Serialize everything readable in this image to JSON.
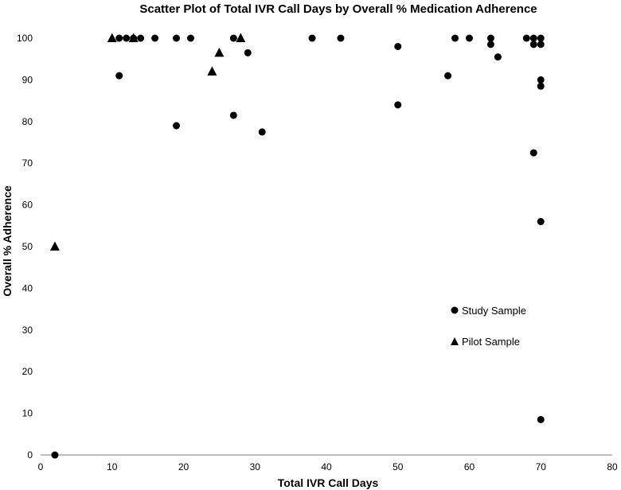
{
  "chart_data": {
    "type": "scatter",
    "title": "Scatter Plot of Total IVR Call Days by Overall % Medication Adherence",
    "xlabel": "Total IVR Call Days",
    "ylabel": "Overall % Adherence",
    "xlim": [
      0,
      80
    ],
    "ylim": [
      0,
      100
    ],
    "xticks": [
      "0",
      "10",
      "20",
      "30",
      "40",
      "50",
      "60",
      "70",
      "80"
    ],
    "yticks": [
      "0",
      "10",
      "20",
      "30",
      "40",
      "50",
      "60",
      "70",
      "80",
      "90",
      "100"
    ],
    "grid": false,
    "legend_position": "lower-right",
    "series": [
      {
        "name": "Study Sample",
        "marker": "circle",
        "color": "#000000",
        "points": [
          [
            2,
            0
          ],
          [
            11,
            100
          ],
          [
            11,
            91
          ],
          [
            12,
            100
          ],
          [
            13,
            100
          ],
          [
            14,
            100
          ],
          [
            16,
            100
          ],
          [
            19,
            100
          ],
          [
            19,
            79
          ],
          [
            21,
            100
          ],
          [
            27,
            100
          ],
          [
            27,
            81.5
          ],
          [
            29,
            96.5
          ],
          [
            31,
            77.5
          ],
          [
            38,
            100
          ],
          [
            42,
            100
          ],
          [
            50,
            98
          ],
          [
            50,
            84
          ],
          [
            57,
            91
          ],
          [
            58,
            100
          ],
          [
            60,
            100
          ],
          [
            63,
            100
          ],
          [
            63,
            98.5
          ],
          [
            64,
            95.5
          ],
          [
            68,
            100
          ],
          [
            69,
            100
          ],
          [
            69,
            98.5
          ],
          [
            69,
            72.5
          ],
          [
            70,
            100
          ],
          [
            70,
            98.5
          ],
          [
            70,
            90
          ],
          [
            70,
            88.5
          ],
          [
            70,
            56
          ],
          [
            70,
            8.5
          ]
        ]
      },
      {
        "name": "Pilot Sample",
        "marker": "triangle",
        "color": "#000000",
        "points": [
          [
            2,
            50
          ],
          [
            10,
            100
          ],
          [
            13,
            100
          ],
          [
            24,
            92
          ],
          [
            25,
            96.5
          ],
          [
            28,
            100
          ]
        ]
      }
    ]
  }
}
